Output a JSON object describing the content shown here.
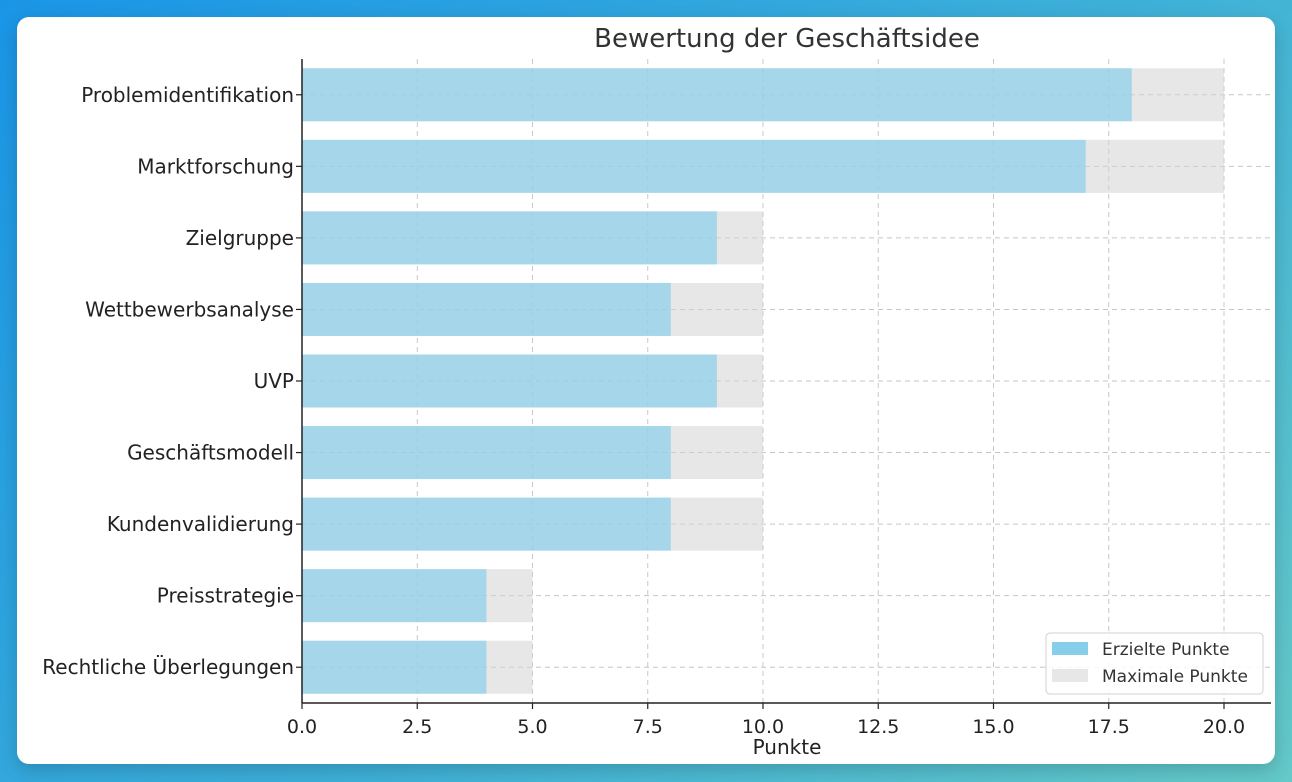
{
  "chart_data": {
    "type": "bar",
    "orientation": "horizontal",
    "title": "Bewertung der Geschäftsidee",
    "xlabel": "Punkte",
    "ylabel": "",
    "categories": [
      "Problemidentifikation",
      "Marktforschung",
      "Zielgruppe",
      "Wettbewerbsanalyse",
      "UVP",
      "Geschäftsmodell",
      "Kundenvalidierung",
      "Preisstrategie",
      "Rechtliche Überlegungen"
    ],
    "series": [
      {
        "name": "Erzielte Punkte",
        "color": "#87CEEB",
        "values": [
          18,
          17,
          9,
          8,
          9,
          8,
          8,
          4,
          4
        ]
      },
      {
        "name": "Maximale Punkte",
        "color": "#D3D3D3",
        "values": [
          20,
          20,
          10,
          10,
          10,
          10,
          10,
          5,
          5
        ]
      }
    ],
    "xlim": [
      0,
      21
    ],
    "xticks": [
      0,
      2.5,
      5,
      7.5,
      10,
      12.5,
      15,
      17.5,
      20
    ],
    "xtick_labels": [
      "0.0",
      "2.5",
      "5.0",
      "7.5",
      "10.0",
      "12.5",
      "15.0",
      "17.5",
      "20.0"
    ],
    "grid": true,
    "legend": "lower-right"
  }
}
